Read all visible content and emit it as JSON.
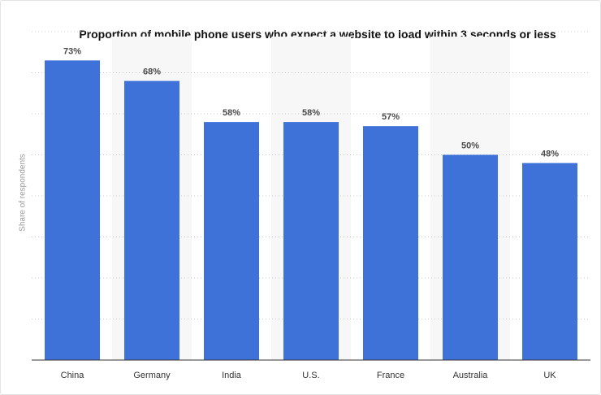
{
  "chart_data": {
    "type": "bar",
    "title": "Proportion of mobile phone users who expect a website to load within 3 seconds or less",
    "ylabel": "Share of respondents",
    "xlabel": "",
    "categories": [
      "China",
      "Germany",
      "India",
      "U.S.",
      "France",
      "Australia",
      "UK"
    ],
    "values": [
      73,
      68,
      58,
      58,
      57,
      50,
      48
    ],
    "value_labels": [
      "73%",
      "68%",
      "58%",
      "58%",
      "57%",
      "50%",
      "48%"
    ],
    "ylim": [
      0,
      80
    ],
    "grid": true,
    "bar_color": "#3f72d8",
    "band_color": "#f7f7f7"
  }
}
